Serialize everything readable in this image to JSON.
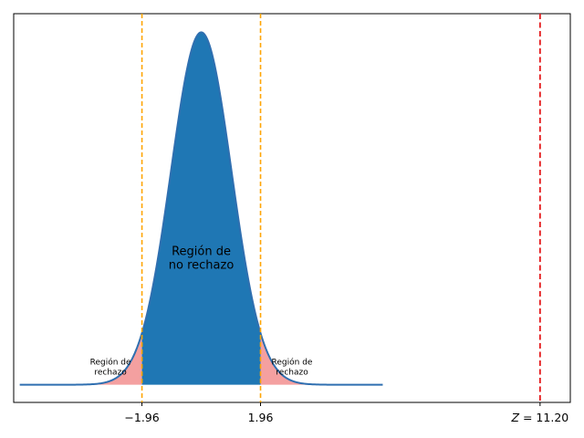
{
  "chart_data": {
    "type": "area",
    "title": "",
    "xlabel": "",
    "ylabel": "",
    "xlim": [
      -6.2,
      12.2
    ],
    "ylim": [
      -0.02,
      0.42
    ],
    "curve": {
      "name": "standard normal density",
      "mean": 0,
      "sd": 1,
      "x_range": [
        -6,
        6
      ],
      "line_color": "#2f6fb0",
      "fill_color": "#1f77b4"
    },
    "critical_values": [
      -1.96,
      1.96
    ],
    "critical_line_color": "#ffa500",
    "test_statistic": {
      "value": 11.2,
      "label": "Z = 11.20",
      "color": "#e41a1c"
    },
    "rejection_fill_color": "#f4a0a0",
    "xticks": [
      {
        "value": -1.96,
        "label": "−1.96"
      },
      {
        "value": 1.96,
        "label": "1.96"
      }
    ],
    "annotations": {
      "no_rejection": [
        "Región de",
        "no rechazo"
      ],
      "rejection_left": [
        "Región de",
        "rechazo"
      ],
      "rejection_right": [
        "Región de",
        "rechazo"
      ]
    }
  }
}
